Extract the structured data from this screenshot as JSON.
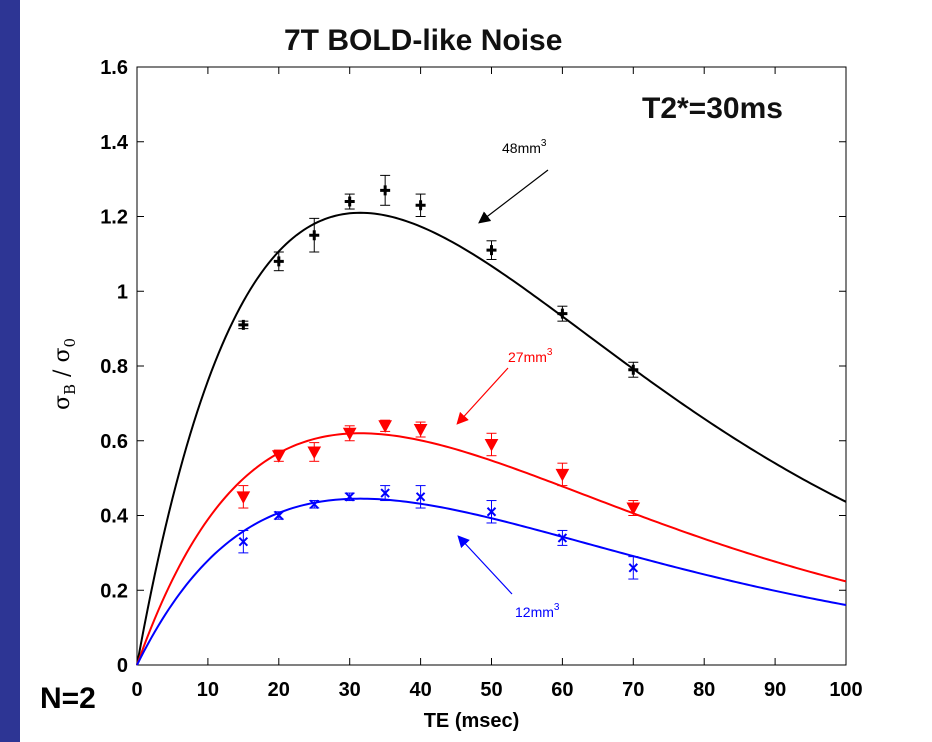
{
  "chart_data": {
    "type": "scatter",
    "title": "7T  BOLD-like Noise",
    "annotation": "T2*=30ms",
    "footnote": "N=2",
    "xlabel": "TE (msec)",
    "ylabel_main": "σ",
    "ylabel_sub1": "B",
    "ylabel_div": " / σ",
    "ylabel_sub2": "0",
    "xlim": [
      0,
      100
    ],
    "ylim": [
      0,
      1.6
    ],
    "xticks": [
      "0",
      "10",
      "20",
      "30",
      "40",
      "50",
      "60",
      "70",
      "80",
      "90",
      "100"
    ],
    "yticks": [
      "0",
      "0.2",
      "0.4",
      "0.6",
      "0.8",
      "1",
      "1.2",
      "1.4",
      "1.6"
    ],
    "grid": false,
    "series": [
      {
        "name": "48mm",
        "sup": "3",
        "color": "#000000",
        "marker": "plus",
        "x": [
          15,
          20,
          25,
          30,
          35,
          40,
          50,
          60,
          70
        ],
        "y": [
          0.91,
          1.08,
          1.15,
          1.24,
          1.27,
          1.23,
          1.11,
          0.94,
          0.79
        ],
        "err": [
          0.01,
          0.025,
          0.045,
          0.02,
          0.04,
          0.03,
          0.025,
          0.02,
          0.02
        ],
        "fit_peak": 1.21
      },
      {
        "name": "27mm",
        "sup": "3",
        "color": "#ff0000",
        "marker": "triangle-down",
        "x": [
          15,
          20,
          25,
          30,
          35,
          40,
          50,
          60,
          70
        ],
        "y": [
          0.45,
          0.56,
          0.57,
          0.62,
          0.64,
          0.63,
          0.59,
          0.51,
          0.42
        ],
        "err": [
          0.03,
          0.015,
          0.025,
          0.02,
          0.015,
          0.02,
          0.03,
          0.03,
          0.02
        ],
        "fit_peak": 0.62
      },
      {
        "name": "12mm",
        "sup": "3",
        "color": "#0000ff",
        "marker": "x",
        "x": [
          15,
          20,
          25,
          30,
          35,
          40,
          50,
          60,
          70
        ],
        "y": [
          0.33,
          0.4,
          0.43,
          0.45,
          0.46,
          0.45,
          0.41,
          0.34,
          0.26
        ],
        "err": [
          0.03,
          0.01,
          0.01,
          0.01,
          0.02,
          0.03,
          0.03,
          0.02,
          0.03
        ],
        "fit_peak": 0.445
      }
    ]
  }
}
